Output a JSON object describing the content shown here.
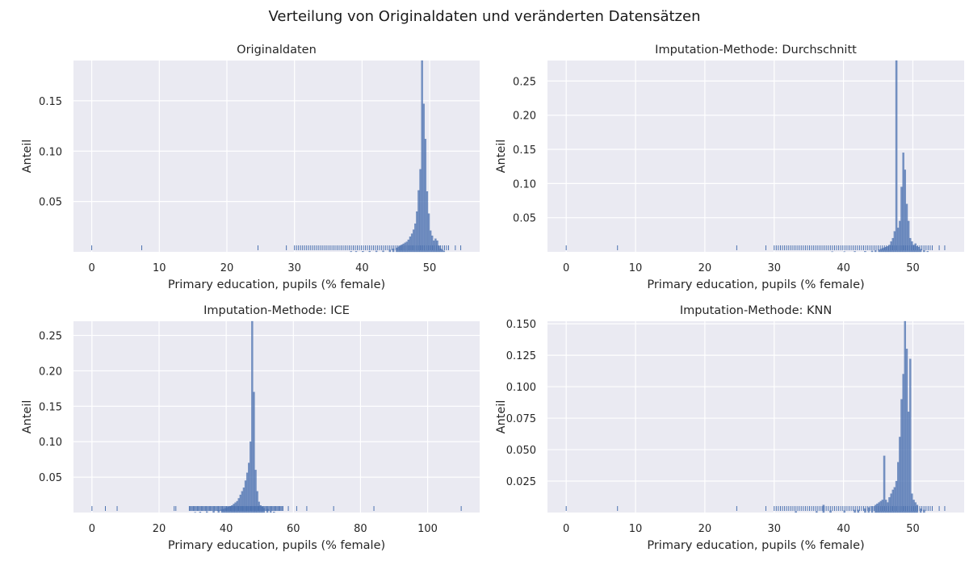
{
  "figure": {
    "title": "Verteilung von Originaldaten und veränderten Datensätzen",
    "colors": {
      "background": "#eaeaf2",
      "grid": "#ffffff",
      "bar": "#4c72b0"
    }
  },
  "chart_data": [
    {
      "type": "histogram",
      "title": "Originaldaten",
      "xlabel": "Primary education, pupils (% female)",
      "ylabel": "Anteil",
      "xlim": [
        -2.7,
        57.4
      ],
      "ylim": [
        0.0,
        0.19
      ],
      "xticks": [
        0,
        10,
        20,
        30,
        40,
        50
      ],
      "yticks": [
        0.05,
        0.1,
        0.15
      ],
      "ytick_labels": [
        "0.05",
        "0.10",
        "0.15"
      ],
      "bin_width": 0.25,
      "bars": [
        [
          38.25,
          0.0005
        ],
        [
          39.0,
          0.0005
        ],
        [
          40.0,
          0.0007
        ],
        [
          41.0,
          0.0008
        ],
        [
          42.0,
          0.0009
        ],
        [
          43.0,
          0.0011
        ],
        [
          44.0,
          0.002
        ],
        [
          44.5,
          0.003
        ],
        [
          45.0,
          0.004
        ],
        [
          45.25,
          0.005
        ],
        [
          45.5,
          0.006
        ],
        [
          45.75,
          0.007
        ],
        [
          46.0,
          0.008
        ],
        [
          46.25,
          0.009
        ],
        [
          46.5,
          0.01
        ],
        [
          46.75,
          0.012
        ],
        [
          47.0,
          0.015
        ],
        [
          47.25,
          0.018
        ],
        [
          47.5,
          0.022
        ],
        [
          47.75,
          0.028
        ],
        [
          48.0,
          0.04
        ],
        [
          48.25,
          0.061
        ],
        [
          48.5,
          0.082
        ],
        [
          48.75,
          0.19
        ],
        [
          49.0,
          0.147
        ],
        [
          49.25,
          0.112
        ],
        [
          49.5,
          0.06
        ],
        [
          49.75,
          0.038
        ],
        [
          50.0,
          0.021
        ],
        [
          50.25,
          0.016
        ],
        [
          50.5,
          0.011
        ],
        [
          50.75,
          0.013
        ],
        [
          51.0,
          0.011
        ],
        [
          51.25,
          0.006
        ],
        [
          51.5,
          0.003
        ],
        [
          51.75,
          0.002
        ],
        [
          52.0,
          0.001
        ]
      ],
      "rug": {
        "sparse": [
          0.0,
          7.4,
          24.6,
          28.8,
          53.8,
          54.6
        ],
        "dense_range": [
          30.0,
          53.0
        ]
      }
    },
    {
      "type": "histogram",
      "title": "Imputation-Methode: Durchschnitt",
      "xlabel": "Primary education, pupils (% female)",
      "ylabel": "Anteil",
      "xlim": [
        -2.7,
        57.4
      ],
      "ylim": [
        0.0,
        0.28
      ],
      "xticks": [
        0,
        10,
        20,
        30,
        40,
        50
      ],
      "yticks": [
        0.05,
        0.1,
        0.15,
        0.2,
        0.25
      ],
      "ytick_labels": [
        "0.05",
        "0.10",
        "0.15",
        "0.20",
        "0.25"
      ],
      "bin_width": 0.25,
      "bars": [
        [
          38.25,
          0.0004
        ],
        [
          40.0,
          0.0005
        ],
        [
          41.5,
          0.0007
        ],
        [
          43.0,
          0.0009
        ],
        [
          44.0,
          0.0015
        ],
        [
          44.5,
          0.002
        ],
        [
          45.0,
          0.003
        ],
        [
          45.25,
          0.004
        ],
        [
          45.5,
          0.005
        ],
        [
          45.75,
          0.006
        ],
        [
          46.0,
          0.007
        ],
        [
          46.25,
          0.008
        ],
        [
          46.5,
          0.01
        ],
        [
          46.75,
          0.015
        ],
        [
          47.0,
          0.02
        ],
        [
          47.25,
          0.03
        ],
        [
          47.5,
          0.28
        ],
        [
          47.75,
          0.035
        ],
        [
          48.0,
          0.045
        ],
        [
          48.25,
          0.095
        ],
        [
          48.5,
          0.145
        ],
        [
          48.75,
          0.12
        ],
        [
          49.0,
          0.07
        ],
        [
          49.25,
          0.045
        ],
        [
          49.5,
          0.02
        ],
        [
          49.75,
          0.015
        ],
        [
          50.0,
          0.01
        ],
        [
          50.25,
          0.012
        ],
        [
          50.5,
          0.008
        ],
        [
          50.75,
          0.007
        ],
        [
          51.0,
          0.004
        ],
        [
          51.5,
          0.002
        ],
        [
          52.0,
          0.001
        ]
      ],
      "rug": {
        "sparse": [
          0.0,
          7.4,
          24.6,
          28.8,
          53.8,
          54.6
        ],
        "dense_range": [
          30.0,
          53.0
        ]
      }
    },
    {
      "type": "histogram",
      "title": "Imputation-Methode: ICE",
      "xlabel": "Primary education, pupils (% female)",
      "ylabel": "Anteil",
      "xlim": [
        -5.5,
        115.5
      ],
      "ylim": [
        0.0,
        0.27
      ],
      "xticks": [
        0,
        20,
        40,
        60,
        80,
        100
      ],
      "yticks": [
        0.05,
        0.1,
        0.15,
        0.2,
        0.25
      ],
      "ytick_labels": [
        "0.05",
        "0.10",
        "0.15",
        "0.20",
        "0.25"
      ],
      "bin_width": 0.5,
      "bars": [
        [
          30.5,
          0.0005
        ],
        [
          32.0,
          0.001
        ],
        [
          34.0,
          0.0015
        ],
        [
          36.0,
          0.002
        ],
        [
          37.5,
          0.003
        ],
        [
          38.5,
          0.004
        ],
        [
          39.0,
          0.005
        ],
        [
          39.5,
          0.006
        ],
        [
          40.0,
          0.007
        ],
        [
          40.5,
          0.008
        ],
        [
          41.0,
          0.009
        ],
        [
          41.5,
          0.01
        ],
        [
          42.0,
          0.012
        ],
        [
          42.5,
          0.014
        ],
        [
          43.0,
          0.016
        ],
        [
          43.5,
          0.02
        ],
        [
          44.0,
          0.025
        ],
        [
          44.5,
          0.03
        ],
        [
          45.0,
          0.035
        ],
        [
          45.5,
          0.045
        ],
        [
          46.0,
          0.056
        ],
        [
          46.5,
          0.07
        ],
        [
          47.0,
          0.1
        ],
        [
          47.5,
          0.27
        ],
        [
          48.0,
          0.17
        ],
        [
          48.5,
          0.06
        ],
        [
          49.0,
          0.03
        ],
        [
          49.5,
          0.015
        ],
        [
          50.0,
          0.01
        ],
        [
          50.5,
          0.008
        ],
        [
          51.0,
          0.006
        ],
        [
          52.0,
          0.005
        ],
        [
          53.0,
          0.002
        ],
        [
          54.0,
          0.001
        ]
      ],
      "rug": {
        "sparse": [
          0.0,
          4.0,
          7.5,
          24.5,
          25.0,
          58.5,
          61.0,
          64.0,
          72.0,
          84.0,
          110.0
        ],
        "dense_range": [
          29.0,
          57.0
        ]
      }
    },
    {
      "type": "histogram",
      "title": "Imputation-Methode: KNN",
      "xlabel": "Primary education, pupils (% female)",
      "ylabel": "Anteil",
      "xlim": [
        -2.7,
        57.4
      ],
      "ylim": [
        0.0,
        0.152
      ],
      "xticks": [
        0,
        10,
        20,
        30,
        40,
        50
      ],
      "yticks": [
        0.025,
        0.05,
        0.075,
        0.1,
        0.125,
        0.15
      ],
      "ytick_labels": [
        "0.025",
        "0.050",
        "0.075",
        "0.100",
        "0.125",
        "0.150"
      ],
      "bin_width": 0.25,
      "bars": [
        [
          33.0,
          0.001
        ],
        [
          36.0,
          0.001
        ],
        [
          37.0,
          0.006
        ],
        [
          38.0,
          0.0015
        ],
        [
          40.0,
          0.0015
        ],
        [
          41.5,
          0.002
        ],
        [
          42.0,
          0.002
        ],
        [
          43.0,
          0.003
        ],
        [
          43.5,
          0.004
        ],
        [
          44.0,
          0.005
        ],
        [
          44.5,
          0.006
        ],
        [
          44.75,
          0.007
        ],
        [
          45.0,
          0.008
        ],
        [
          45.25,
          0.009
        ],
        [
          45.5,
          0.01
        ],
        [
          45.75,
          0.045
        ],
        [
          46.0,
          0.01
        ],
        [
          46.25,
          0.008
        ],
        [
          46.5,
          0.012
        ],
        [
          46.75,
          0.015
        ],
        [
          47.0,
          0.018
        ],
        [
          47.25,
          0.02
        ],
        [
          47.5,
          0.025
        ],
        [
          47.75,
          0.04
        ],
        [
          48.0,
          0.06
        ],
        [
          48.25,
          0.09
        ],
        [
          48.5,
          0.11
        ],
        [
          48.75,
          0.152
        ],
        [
          49.0,
          0.13
        ],
        [
          49.25,
          0.08
        ],
        [
          49.5,
          0.122
        ],
        [
          49.75,
          0.015
        ],
        [
          50.0,
          0.01
        ],
        [
          50.25,
          0.008
        ],
        [
          50.5,
          0.006
        ],
        [
          51.0,
          0.003
        ],
        [
          51.5,
          0.002
        ]
      ],
      "rug": {
        "sparse": [
          0.0,
          7.4,
          24.6,
          28.8,
          53.8,
          54.6
        ],
        "dense_range": [
          30.0,
          53.0
        ]
      }
    }
  ]
}
